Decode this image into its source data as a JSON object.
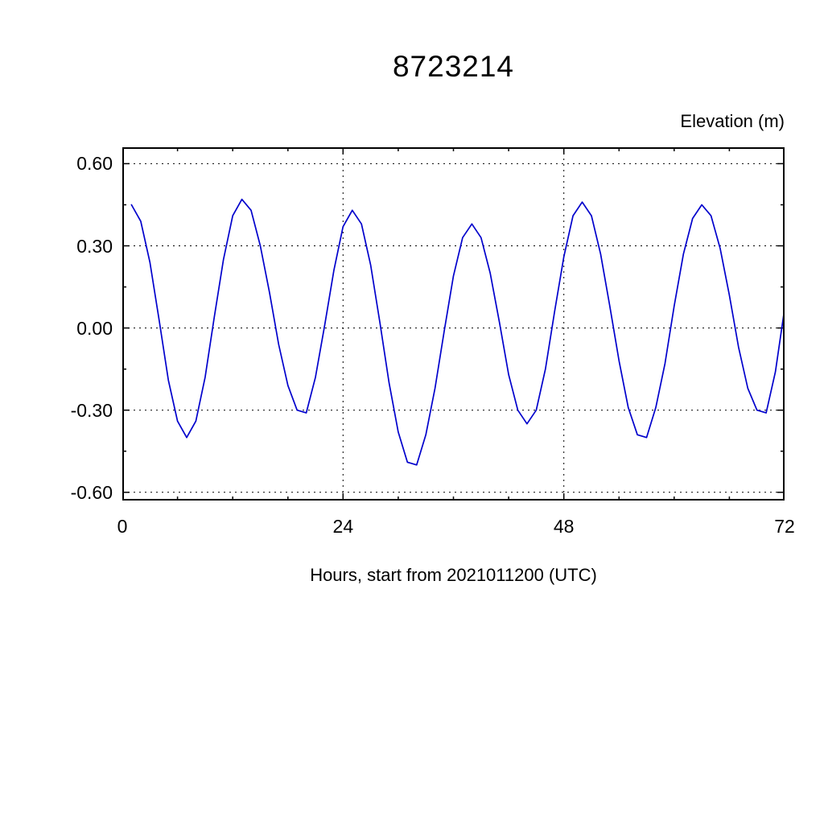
{
  "page": {
    "background": "#ffffff"
  },
  "chart_data": {
    "type": "line",
    "title": "8723214",
    "ylabel": "Elevation (m)",
    "xlabel": "Hours, start from 2021011200 (UTC)",
    "legend": null,
    "grid": "dashed",
    "line_color": "#0000cc",
    "xlim": [
      0,
      72
    ],
    "ylim": [
      -0.6,
      0.6
    ],
    "x_major_ticks": [
      0,
      24,
      48,
      72
    ],
    "x_tick_labels": [
      "0",
      "24",
      "48",
      "72"
    ],
    "x_minor_step": 6,
    "y_major_ticks": [
      0.6,
      0.3,
      0.0,
      -0.3,
      -0.6
    ],
    "y_tick_labels": [
      "0.60",
      "0.30",
      "0.00",
      "-0.30",
      "-0.60"
    ],
    "y_minor_ticks": [
      0.45,
      0.15,
      -0.15,
      -0.45
    ],
    "x": [
      1,
      2,
      3,
      4,
      5,
      6,
      7,
      8,
      9,
      10,
      11,
      12,
      13,
      14,
      15,
      16,
      17,
      18,
      19,
      20,
      21,
      22,
      23,
      24,
      25,
      26,
      27,
      28,
      29,
      30,
      31,
      32,
      33,
      34,
      35,
      36,
      37,
      38,
      39,
      40,
      41,
      42,
      43,
      44,
      45,
      46,
      47,
      48,
      49,
      50,
      51,
      52,
      53,
      54,
      55,
      56,
      57,
      58,
      59,
      60,
      61,
      62,
      63,
      64,
      65,
      66,
      67,
      68,
      69,
      70,
      71,
      72
    ],
    "y": [
      0.45,
      0.39,
      0.24,
      0.03,
      -0.19,
      -0.34,
      -0.4,
      -0.34,
      -0.18,
      0.04,
      0.25,
      0.41,
      0.47,
      0.43,
      0.3,
      0.13,
      -0.06,
      -0.21,
      -0.3,
      -0.31,
      -0.18,
      0.01,
      0.21,
      0.37,
      0.43,
      0.38,
      0.23,
      0.02,
      -0.2,
      -0.38,
      -0.49,
      -0.5,
      -0.39,
      -0.22,
      -0.01,
      0.19,
      0.33,
      0.38,
      0.33,
      0.2,
      0.02,
      -0.17,
      -0.3,
      -0.35,
      -0.3,
      -0.15,
      0.06,
      0.26,
      0.41,
      0.46,
      0.41,
      0.27,
      0.08,
      -0.12,
      -0.29,
      -0.39,
      -0.4,
      -0.29,
      -0.13,
      0.08,
      0.27,
      0.4,
      0.45,
      0.41,
      0.29,
      0.12,
      -0.07,
      -0.22,
      -0.3,
      -0.31,
      -0.16,
      0.07
    ]
  }
}
